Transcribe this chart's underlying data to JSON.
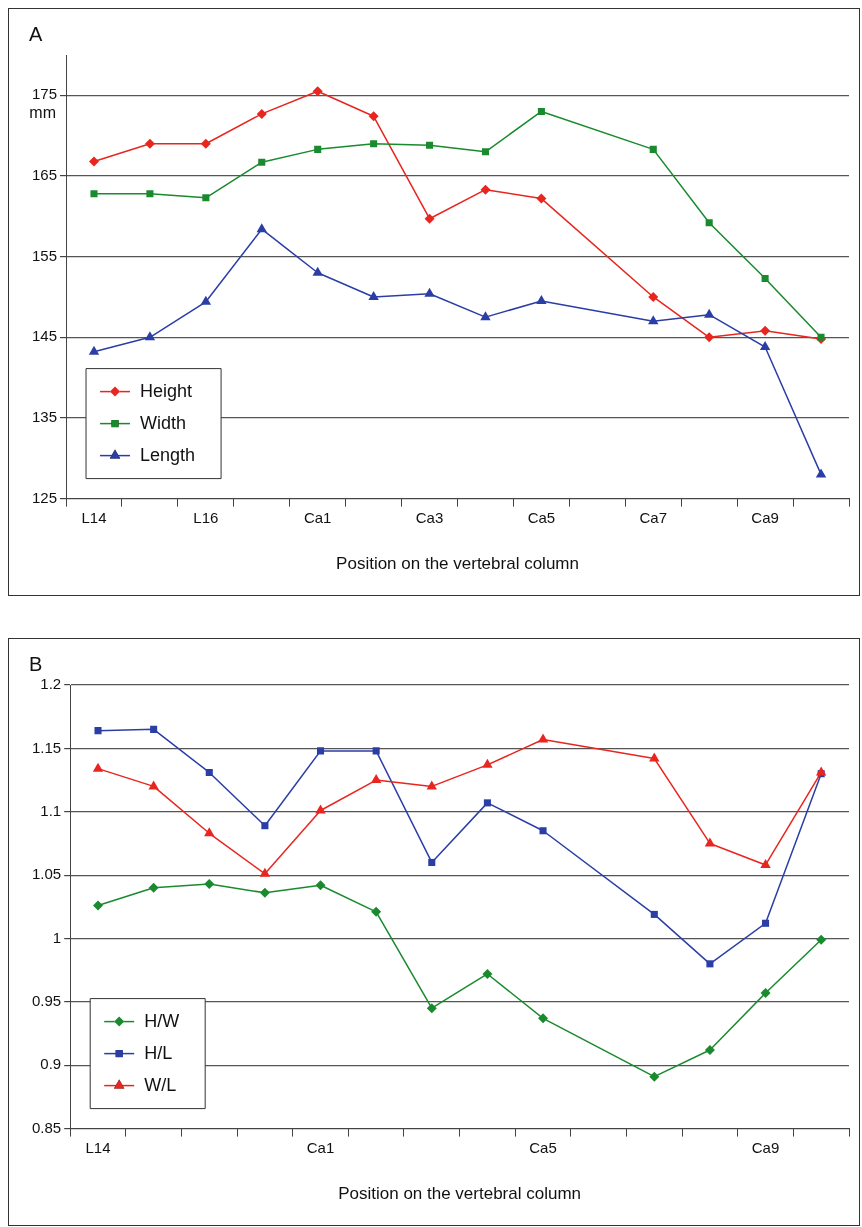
{
  "chart_data": [
    {
      "type": "line",
      "title": "A",
      "xlabel": "Position on the vertebral column",
      "ylabel": "mm",
      "categories": [
        "L14",
        null,
        "L16",
        null,
        "Ca1",
        null,
        "Ca3",
        null,
        "Ca5",
        null,
        "Ca7",
        null,
        "Ca9",
        null
      ],
      "series": [
        {
          "name": "Height",
          "color": "#e8261f",
          "marker": "diamond",
          "values": [
            166.8,
            169,
            169,
            172.7,
            175.5,
            172.4,
            159.7,
            163.3,
            162.2,
            null,
            150,
            145,
            145.8,
            144.8
          ]
        },
        {
          "name": "Width",
          "color": "#1a8a2e",
          "marker": "square",
          "values": [
            162.8,
            162.8,
            162.3,
            166.7,
            168.3,
            169,
            168.8,
            168,
            173,
            null,
            168.3,
            159.2,
            152.3,
            145
          ]
        },
        {
          "name": "Length",
          "color": "#2b3ea6",
          "marker": "triangle",
          "values": [
            143.2,
            145,
            149.4,
            158.4,
            153,
            150,
            150.4,
            147.5,
            149.5,
            null,
            147,
            147.8,
            143.8,
            128
          ]
        }
      ],
      "ylim": [
        125,
        180
      ],
      "yticks": [
        125,
        135,
        145,
        155,
        165,
        175
      ],
      "grid": "y",
      "legend": "bottom left"
    },
    {
      "type": "line",
      "title": "B",
      "xlabel": "Position on the vertebral column",
      "categories": [
        "L14",
        null,
        null,
        null,
        "Ca1",
        null,
        null,
        null,
        "Ca5",
        null,
        null,
        null,
        "Ca9",
        null
      ],
      "series": [
        {
          "name": "H/W",
          "color": "#1a8a2e",
          "marker": "diamond",
          "values": [
            1.026,
            1.04,
            1.043,
            1.036,
            1.042,
            1.021,
            0.945,
            0.972,
            0.937,
            null,
            0.891,
            0.912,
            0.957,
            0.999
          ]
        },
        {
          "name": "H/L",
          "color": "#2b3ea6",
          "marker": "square",
          "values": [
            1.164,
            1.165,
            1.131,
            1.089,
            1.148,
            1.148,
            1.06,
            1.107,
            1.085,
            null,
            1.019,
            0.98,
            1.012,
            1.13
          ]
        },
        {
          "name": "W/L",
          "color": "#e8261f",
          "marker": "triangle",
          "values": [
            1.134,
            1.12,
            1.083,
            1.051,
            1.101,
            1.125,
            1.12,
            1.137,
            1.157,
            null,
            1.142,
            1.075,
            1.058,
            1.131
          ]
        }
      ],
      "ylim": [
        0.85,
        1.2
      ],
      "yticks": [
        0.85,
        0.9,
        0.95,
        1,
        1.05,
        1.1,
        1.15,
        1.2
      ],
      "grid": "y",
      "legend": "bottom left"
    }
  ]
}
